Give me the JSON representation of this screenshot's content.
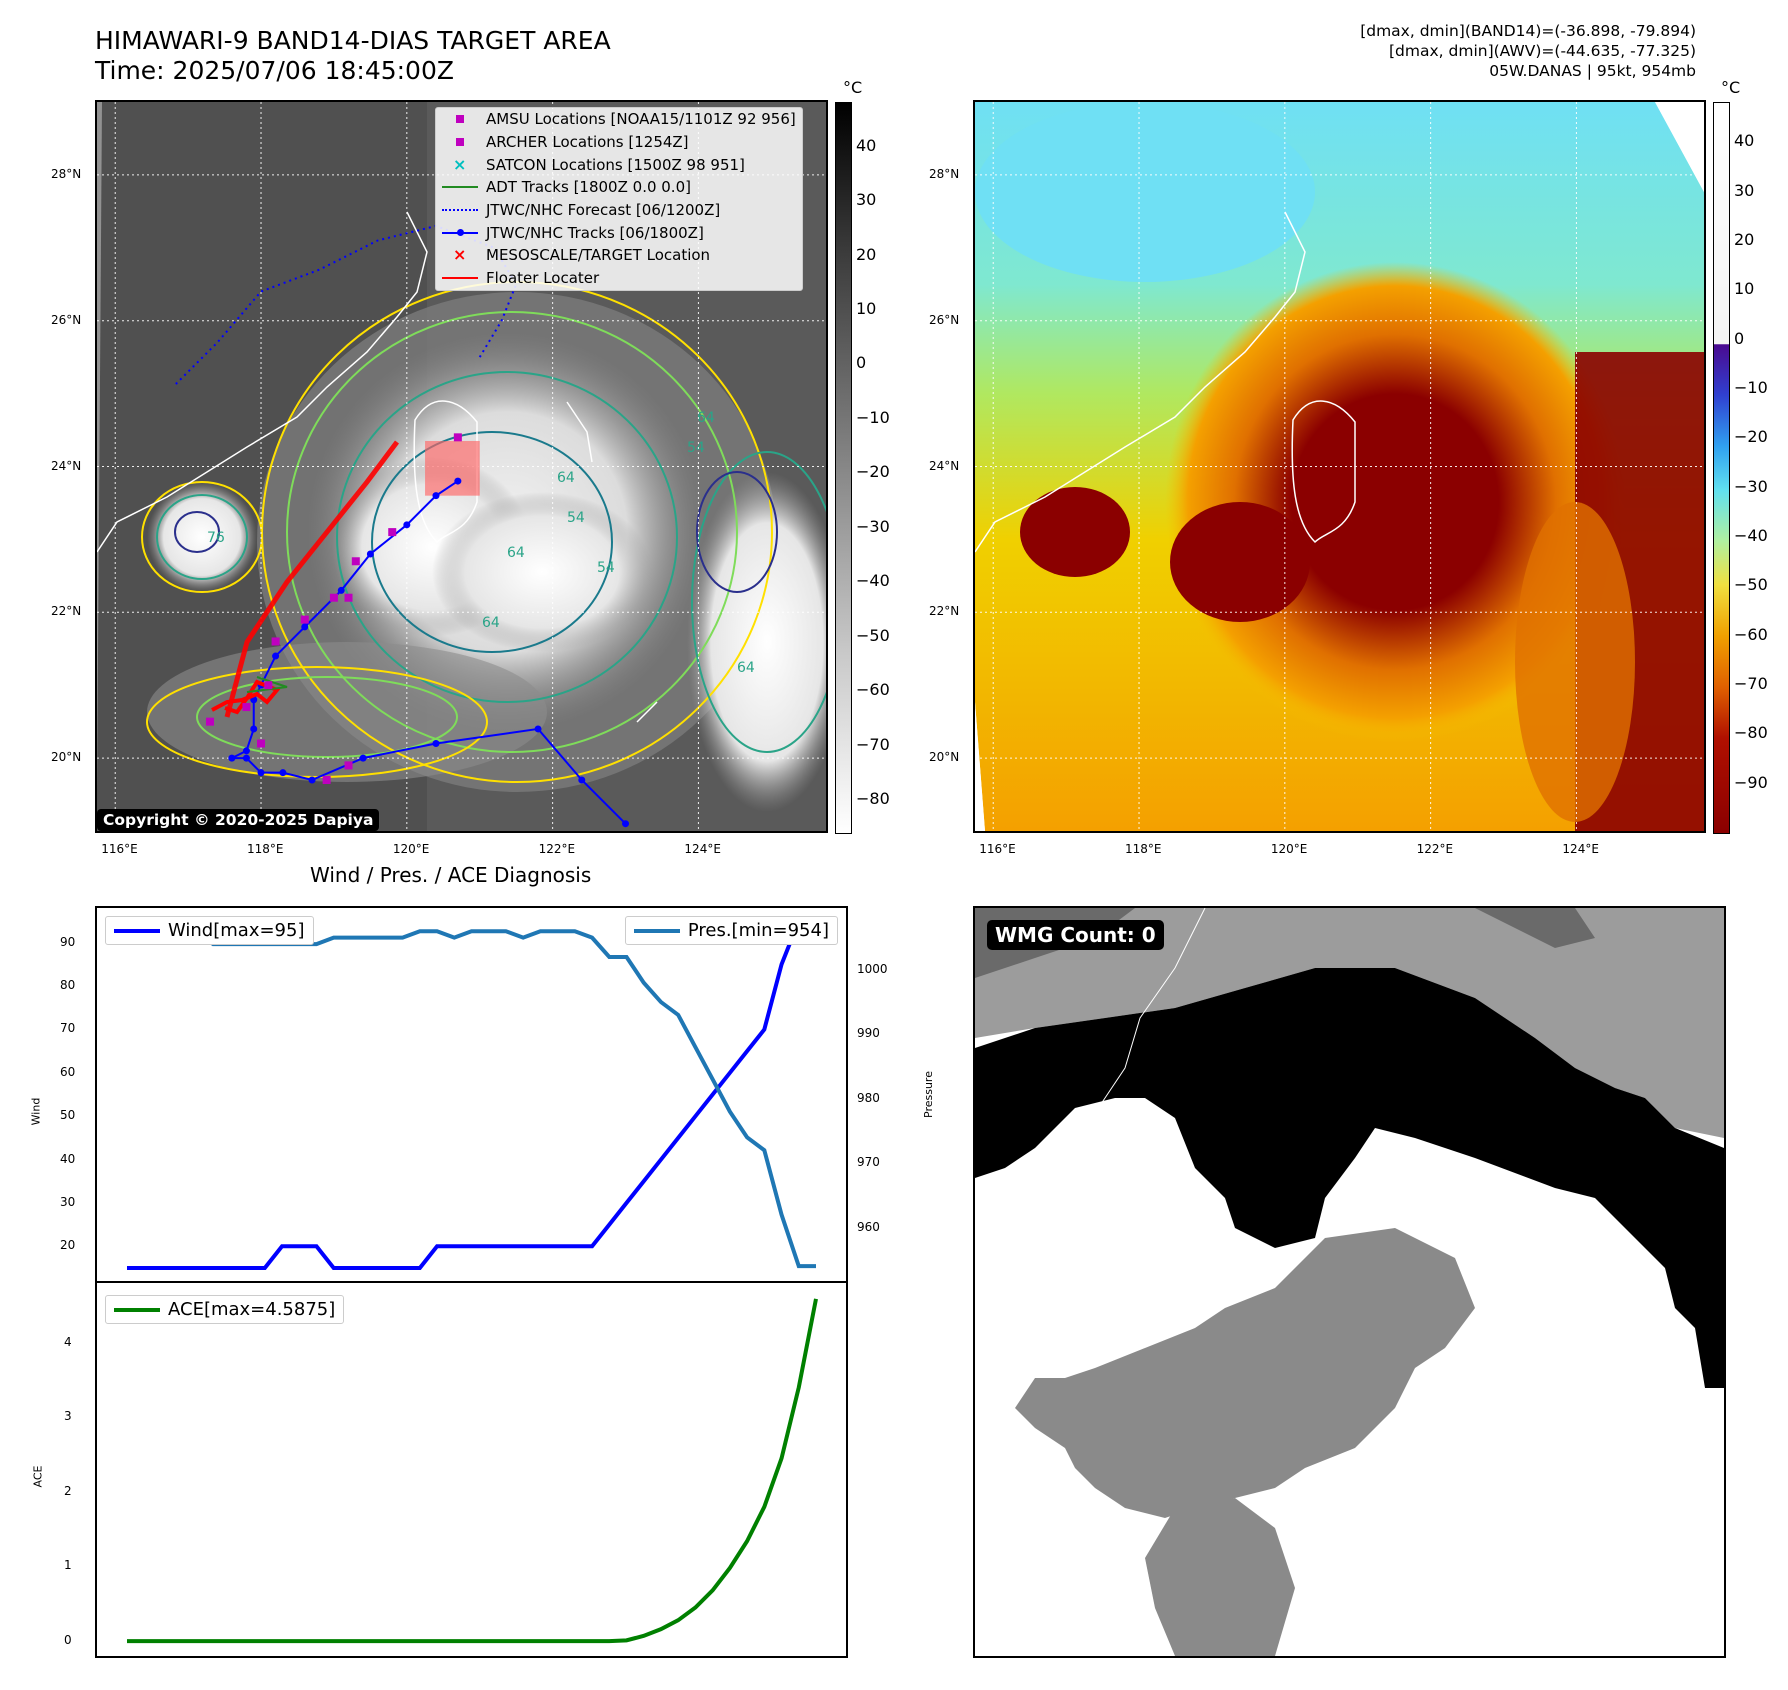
{
  "header": {
    "title": "HIMAWARI-9 BAND14-DIAS TARGET AREA",
    "time": "Time: 2025/07/06 18:45:00Z",
    "info_line1": "[dmax, dmin](BAND14)=(-36.898, -79.894)",
    "info_line2": "[dmax, dmin](AWV)=(-44.635, -77.325)",
    "info_line3": "05W.DANAS | 95kt, 954mb"
  },
  "map": {
    "lon_ticks": [
      "116°E",
      "118°E",
      "120°E",
      "122°E",
      "124°E"
    ],
    "lat_ticks": [
      "28°N",
      "26°N",
      "24°N",
      "22°N",
      "20°N"
    ],
    "copyright": "Copyright © 2020-2025 Dapiya",
    "colorbar_unit": "°C",
    "colorbar_ticks": [
      "40",
      "30",
      "20",
      "10",
      "0",
      "−10",
      "−20",
      "−30",
      "−40",
      "−50",
      "−60",
      "−70",
      "−80"
    ],
    "contour_labels": [
      "64",
      "54",
      "64",
      "64",
      "54",
      "64",
      "54",
      "64",
      "76"
    ],
    "colors": {
      "adt": "#228b22",
      "jtwc_forecast": "#0000ff",
      "jtwc_track": "#0000ff",
      "target": "#ff0000",
      "floater": "#ff0000",
      "amsu": "#bf00bf",
      "archer": "#bf00bf",
      "satcon": "#00bfbf"
    },
    "legend": [
      {
        "key": "amsu",
        "label": "AMSU Locations [NOAA15/1101Z 92 956]"
      },
      {
        "key": "archer",
        "label": "ARCHER Locations [1254Z]"
      },
      {
        "key": "satcon",
        "label": "SATCON Locations [1500Z 98 951]"
      },
      {
        "key": "adt",
        "label": "ADT Tracks [1800Z 0.0 0.0]"
      },
      {
        "key": "jtwc_forecast",
        "label": "JTWC/NHC Forecast [06/1200Z]"
      },
      {
        "key": "jtwc_track",
        "label": "JTWC/NHC Tracks [06/1800Z]"
      },
      {
        "key": "target",
        "label": "MESOSCALE/TARGET Location"
      },
      {
        "key": "floater",
        "label": "Floater Locater"
      }
    ],
    "jtwc_track_points": [
      [
        123.0,
        19.1
      ],
      [
        122.4,
        19.7
      ],
      [
        121.8,
        20.4
      ],
      [
        120.4,
        20.2
      ],
      [
        119.4,
        20.0
      ],
      [
        118.7,
        19.7
      ],
      [
        118.3,
        19.8
      ],
      [
        118.0,
        19.8
      ],
      [
        117.8,
        20.0
      ],
      [
        117.6,
        20.0
      ],
      [
        117.8,
        20.1
      ],
      [
        117.9,
        20.4
      ],
      [
        117.9,
        20.8
      ],
      [
        118.0,
        21.0
      ],
      [
        118.2,
        21.4
      ],
      [
        118.6,
        21.8
      ],
      [
        119.1,
        22.3
      ],
      [
        119.5,
        22.8
      ],
      [
        120.0,
        23.2
      ],
      [
        120.4,
        23.6
      ],
      [
        120.7,
        23.8
      ]
    ],
    "jtwc_forecast_points": [
      [
        121.0,
        25.5
      ],
      [
        121.3,
        26.0
      ],
      [
        121.5,
        26.5
      ],
      [
        121.2,
        27.0
      ],
      [
        120.4,
        27.3
      ],
      [
        119.6,
        27.1
      ],
      [
        118.8,
        26.7
      ],
      [
        118.0,
        26.4
      ],
      [
        117.4,
        25.7
      ],
      [
        116.8,
        25.1
      ]
    ],
    "amsu_points": [
      [
        117.3,
        20.5
      ],
      [
        117.8,
        20.7
      ],
      [
        118.1,
        21.0
      ],
      [
        118.2,
        21.6
      ],
      [
        118.6,
        21.9
      ],
      [
        119.0,
        22.2
      ],
      [
        119.2,
        22.2
      ],
      [
        119.3,
        22.7
      ],
      [
        119.8,
        23.1
      ],
      [
        120.7,
        24.4
      ],
      [
        118.9,
        19.7
      ],
      [
        118.0,
        20.2
      ],
      [
        119.2,
        19.9
      ]
    ],
    "target_box": {
      "lon": [
        120.25,
        121.0
      ],
      "lat": [
        23.6,
        24.35
      ]
    }
  },
  "awv_map": {
    "lon_ticks": [
      "116°E",
      "118°E",
      "120°E",
      "122°E",
      "124°E"
    ],
    "lat_ticks": [
      "28°N",
      "26°N",
      "24°N",
      "22°N",
      "20°N"
    ],
    "colorbar_unit": "°C",
    "colorbar_ticks": [
      "40",
      "30",
      "20",
      "10",
      "0",
      "−10",
      "−20",
      "−30",
      "−40",
      "−50",
      "−60",
      "−70",
      "−80",
      "−90"
    ]
  },
  "diagnosis": {
    "title": "Wind / Pres. / ACE Diagnosis",
    "wind_ylabel": "Wind",
    "pres_ylabel": "Pressure",
    "ace_ylabel": "ACE",
    "wind_legend": "Wind[max=95]",
    "pres_legend": "Pres.[min=954]",
    "ace_legend": "ACE[max=4.5875]",
    "wind_ticks": [
      "90",
      "80",
      "70",
      "60",
      "50",
      "40",
      "30",
      "20"
    ],
    "pres_ticks": [
      "1000",
      "990",
      "980",
      "970",
      "960"
    ],
    "ace_ticks": [
      "4",
      "3",
      "2",
      "1",
      "0"
    ]
  },
  "wmg": {
    "label": "WMG Count: 0"
  },
  "chart_data": [
    {
      "type": "line",
      "title": "Wind / Pres. / ACE Diagnosis",
      "ylabel": "Wind",
      "ylim": [
        12,
        98
      ],
      "series": [
        {
          "name": "Wind[max=95]",
          "color": "#0000ff",
          "values": [
            15,
            15,
            15,
            15,
            15,
            15,
            15,
            15,
            15,
            20,
            20,
            20,
            15,
            15,
            15,
            15,
            15,
            15,
            20,
            20,
            20,
            20,
            20,
            20,
            20,
            20,
            20,
            20,
            25,
            30,
            35,
            40,
            45,
            50,
            55,
            60,
            65,
            70,
            85,
            95,
            95
          ]
        }
      ]
    },
    {
      "type": "line",
      "ylabel": "Pressure",
      "ylim": [
        951.7,
        1009.6
      ],
      "series": [
        {
          "name": "Pres.[min=954]",
          "color": "#1f77b4",
          "values": [
            1006,
            1006,
            1006,
            1006,
            1006,
            1004,
            1004,
            1004,
            1004,
            1004,
            1004,
            1004,
            1005,
            1005,
            1005,
            1005,
            1005,
            1006,
            1006,
            1005,
            1006,
            1006,
            1006,
            1005,
            1006,
            1006,
            1006,
            1005,
            1002,
            1002,
            998,
            995,
            993,
            988,
            983,
            978,
            974,
            972,
            962,
            954,
            954
          ]
        }
      ]
    },
    {
      "type": "line",
      "ylabel": "ACE",
      "ylim": [
        -0.2,
        4.8
      ],
      "series": [
        {
          "name": "ACE[max=4.5875]",
          "color": "#008000",
          "values": [
            0,
            0,
            0,
            0,
            0,
            0,
            0,
            0,
            0,
            0,
            0,
            0,
            0,
            0,
            0,
            0,
            0,
            0,
            0,
            0,
            0,
            0,
            0,
            0,
            0,
            0,
            0,
            0,
            0,
            0.01,
            0.07,
            0.16,
            0.28,
            0.45,
            0.68,
            0.98,
            1.34,
            1.8,
            2.45,
            3.4,
            4.5875
          ]
        }
      ]
    }
  ]
}
